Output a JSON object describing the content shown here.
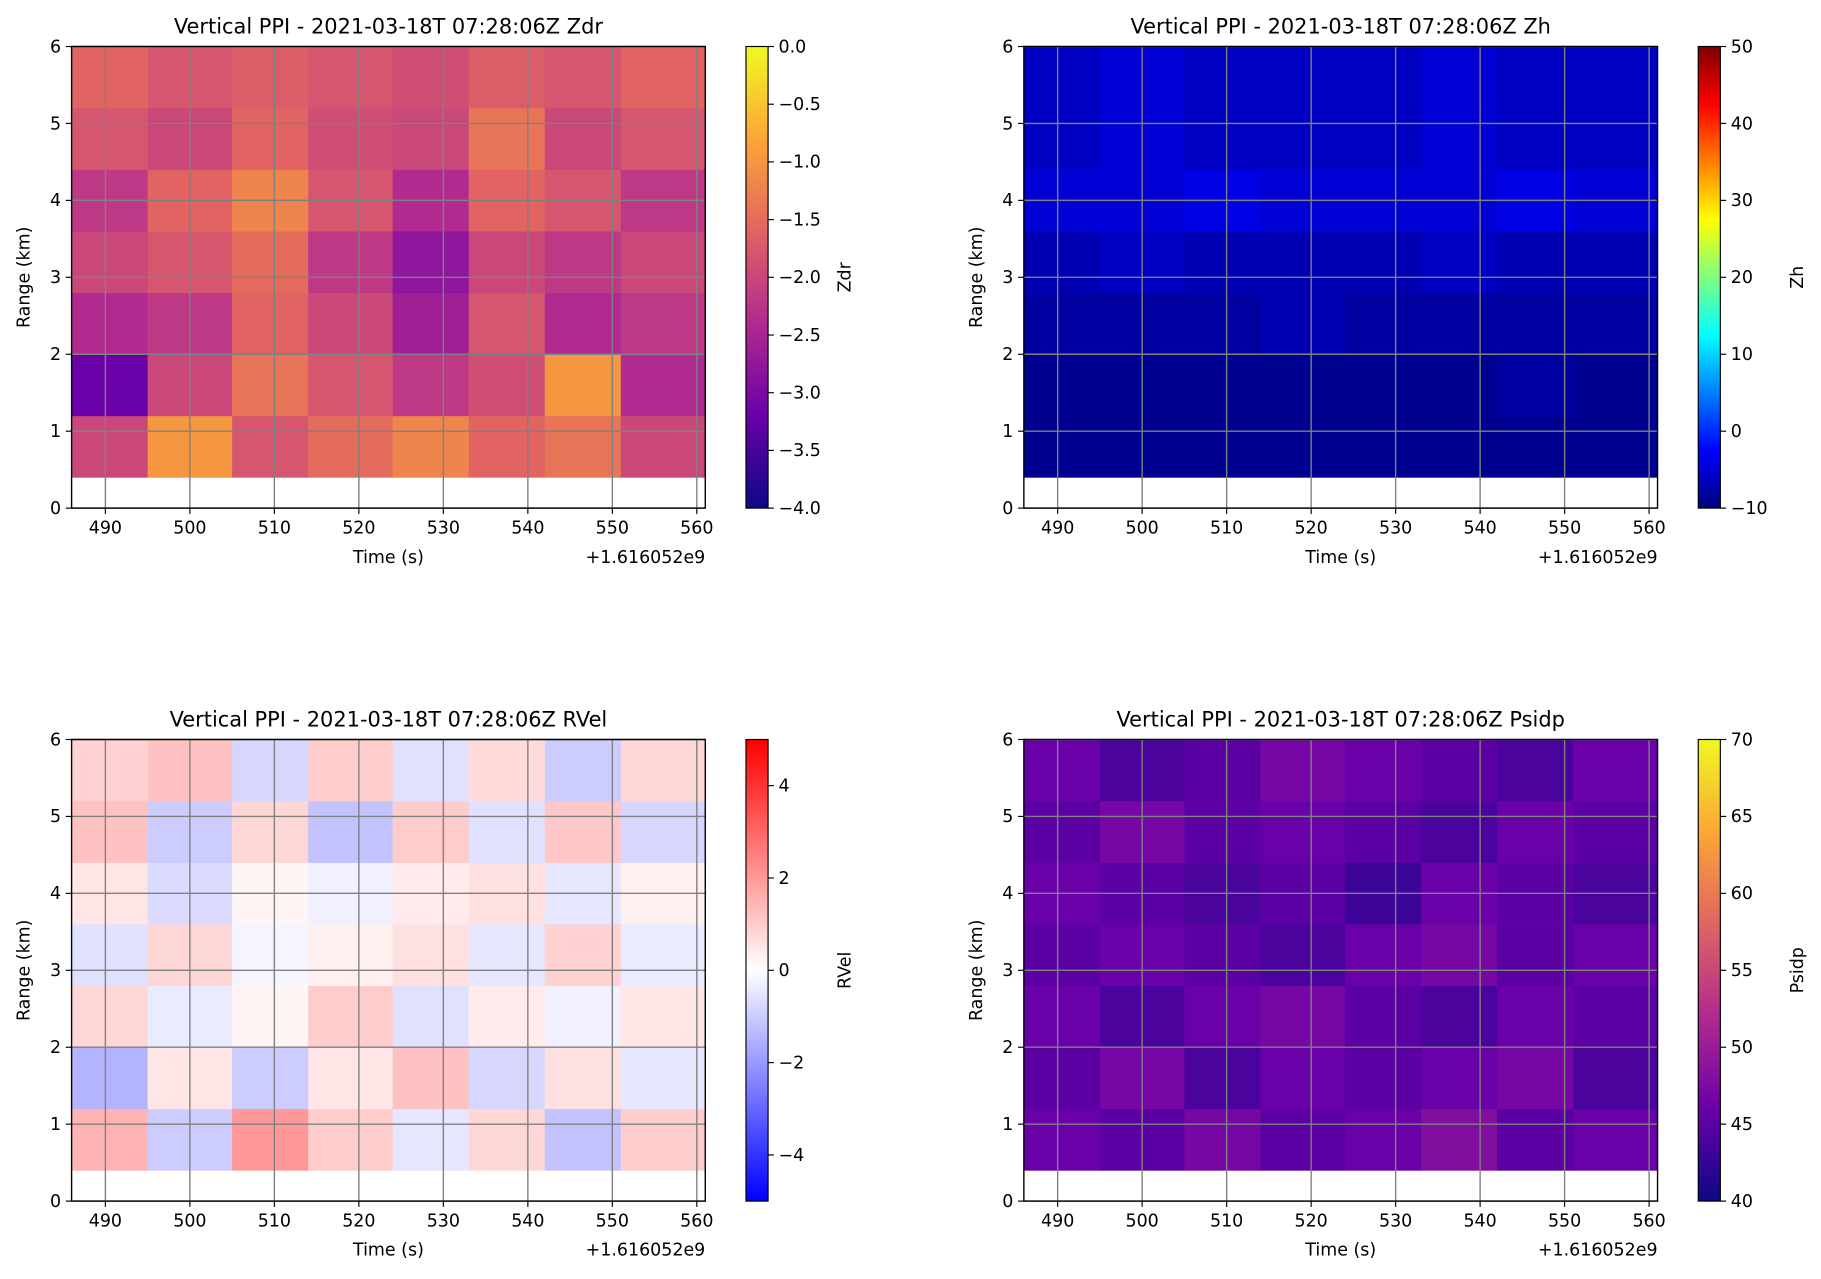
{
  "chart_data": [
    {
      "type": "heatmap",
      "title": "Vertical PPI - 2021-03-18T 07:28:06Z Zdr",
      "xlabel": "Time (s)",
      "ylabel": "Range (km)",
      "x_offset_label": "+1.616052e9",
      "colorbar_label": "Zdr",
      "colormap": [
        "#0d0887",
        "#6a00a8",
        "#b12a90",
        "#e16462",
        "#fca636",
        "#f0f921"
      ],
      "xbins": [
        486,
        495,
        505,
        514,
        524,
        533,
        542,
        551,
        561
      ],
      "ybins": [
        0.4,
        1.2,
        2.0,
        2.8,
        3.6,
        4.4,
        5.2,
        6.0
      ],
      "values": [
        [
          -2.0,
          -1.0,
          -1.8,
          -1.5,
          -1.2,
          -1.6,
          -1.4,
          -2.0
        ],
        [
          -3.2,
          -2.0,
          -1.4,
          -1.8,
          -2.2,
          -1.9,
          -1.0,
          -2.4
        ],
        [
          -2.4,
          -2.2,
          -1.6,
          -2.0,
          -2.6,
          -1.8,
          -2.4,
          -2.2
        ],
        [
          -2.0,
          -1.8,
          -1.5,
          -2.2,
          -2.8,
          -2.0,
          -2.2,
          -2.0
        ],
        [
          -2.2,
          -1.6,
          -1.2,
          -1.8,
          -2.4,
          -1.6,
          -1.8,
          -2.2
        ],
        [
          -1.8,
          -2.0,
          -1.6,
          -1.9,
          -2.0,
          -1.4,
          -2.0,
          -1.8
        ],
        [
          -1.6,
          -1.8,
          -1.7,
          -1.8,
          -1.9,
          -1.7,
          -1.8,
          -1.6
        ]
      ],
      "xlim": [
        486,
        561
      ],
      "ylim": [
        0,
        6
      ],
      "xticks": [
        490,
        500,
        510,
        520,
        530,
        540,
        550,
        560
      ],
      "yticks": [
        0,
        1,
        2,
        3,
        4,
        5,
        6
      ],
      "grid": true,
      "clim": [
        -4,
        0
      ],
      "cticks": [
        {
          "value": 0,
          "label": "0.0"
        },
        {
          "value": -0.5,
          "label": "−0.5"
        },
        {
          "value": -1,
          "label": "−1.0"
        },
        {
          "value": -1.5,
          "label": "−1.5"
        },
        {
          "value": -2,
          "label": "−2.0"
        },
        {
          "value": -2.5,
          "label": "−2.5"
        },
        {
          "value": -3,
          "label": "−3.0"
        },
        {
          "value": -3.5,
          "label": "−3.5"
        },
        {
          "value": -4,
          "label": "−4.0"
        }
      ]
    },
    {
      "type": "heatmap",
      "title": "Vertical PPI - 2021-03-18T 07:28:06Z Zh",
      "xlabel": "Time (s)",
      "ylabel": "Range (km)",
      "x_offset_label": "+1.616052e9",
      "colorbar_label": "Zh",
      "colormap": [
        "#00007f",
        "#0000ff",
        "#007fff",
        "#00ffff",
        "#7fff7f",
        "#ffff00",
        "#ff7f00",
        "#ff0000",
        "#7f0000"
      ],
      "xbins": [
        486,
        495,
        505,
        514,
        524,
        533,
        542,
        551,
        561
      ],
      "ybins": [
        0.4,
        1.2,
        2.0,
        2.8,
        3.6,
        4.4,
        5.2,
        6.0
      ],
      "values": [
        [
          -9,
          -9,
          -9,
          -9,
          -9,
          -9,
          -9,
          -9
        ],
        [
          -9,
          -9,
          -9,
          -9,
          -9,
          -9,
          -8,
          -9
        ],
        [
          -8,
          -8,
          -8,
          -7,
          -8,
          -8,
          -8,
          -8
        ],
        [
          -7,
          -6,
          -7,
          -7,
          -7,
          -6,
          -7,
          -7
        ],
        [
          -5,
          -5,
          -4,
          -5,
          -5,
          -5,
          -4,
          -5
        ],
        [
          -6,
          -5,
          -6,
          -6,
          -6,
          -5,
          -6,
          -6
        ],
        [
          -6,
          -5,
          -6,
          -6,
          -6,
          -5,
          -6,
          -6
        ]
      ],
      "xlim": [
        486,
        561
      ],
      "ylim": [
        0,
        6
      ],
      "xticks": [
        490,
        500,
        510,
        520,
        530,
        540,
        550,
        560
      ],
      "yticks": [
        0,
        1,
        2,
        3,
        4,
        5,
        6
      ],
      "grid": true,
      "clim": [
        -10,
        50
      ],
      "cticks": [
        {
          "value": -10,
          "label": "−10"
        },
        0,
        10,
        20,
        30,
        40,
        50
      ]
    },
    {
      "type": "heatmap",
      "title": "Vertical PPI - 2021-03-18T 07:28:06Z RVel",
      "xlabel": "Time (s)",
      "ylabel": "Range (km)",
      "x_offset_label": "+1.616052e9",
      "colorbar_label": "RVel",
      "colormap": [
        "#0000ff",
        "#ffffff",
        "#ff0000"
      ],
      "xbins": [
        486,
        495,
        505,
        514,
        524,
        533,
        542,
        551,
        561
      ],
      "ybins": [
        0.4,
        1.2,
        2.0,
        2.8,
        3.6,
        4.4,
        5.2,
        6.0
      ],
      "values": [
        [
          1.5,
          -1.0,
          2.0,
          1.0,
          -0.5,
          0.8,
          -1.2,
          1.0
        ],
        [
          -1.5,
          0.5,
          -1.0,
          0.5,
          1.2,
          -0.8,
          0.6,
          -0.5
        ],
        [
          0.8,
          -0.4,
          0.2,
          1.0,
          -0.6,
          0.4,
          -0.3,
          0.5
        ],
        [
          -0.6,
          0.8,
          -0.2,
          0.3,
          0.6,
          -0.5,
          0.9,
          -0.4
        ],
        [
          0.5,
          -0.7,
          0.2,
          -0.3,
          0.4,
          0.6,
          -0.5,
          0.3
        ],
        [
          1.2,
          -1.0,
          0.8,
          -1.2,
          1.0,
          -0.6,
          1.1,
          -0.8
        ],
        [
          0.9,
          1.2,
          -0.8,
          1.0,
          -0.6,
          0.7,
          -1.0,
          0.8
        ]
      ],
      "xlim": [
        486,
        561
      ],
      "ylim": [
        0,
        6
      ],
      "xticks": [
        490,
        500,
        510,
        520,
        530,
        540,
        550,
        560
      ],
      "yticks": [
        0,
        1,
        2,
        3,
        4,
        5,
        6
      ],
      "grid": true,
      "clim": [
        -5,
        5
      ],
      "cticks": [
        {
          "value": -4,
          "label": "−4"
        },
        {
          "value": -2,
          "label": "−2"
        },
        0,
        2,
        4
      ]
    },
    {
      "type": "heatmap",
      "title": "Vertical PPI - 2021-03-18T 07:28:06Z Psidp",
      "xlabel": "Time (s)",
      "ylabel": "Range (km)",
      "x_offset_label": "+1.616052e9",
      "colorbar_label": "Psidp",
      "colormap": [
        "#0d0887",
        "#6a00a8",
        "#b12a90",
        "#e16462",
        "#fca636",
        "#f0f921"
      ],
      "xbins": [
        486,
        495,
        505,
        514,
        524,
        533,
        542,
        551,
        561
      ],
      "ybins": [
        0.4,
        1.2,
        2.0,
        2.8,
        3.6,
        4.4,
        5.2,
        6.0
      ],
      "values": [
        [
          46,
          45,
          47,
          45,
          46,
          48,
          45,
          46
        ],
        [
          45,
          47,
          44,
          46,
          45,
          46,
          47,
          44
        ],
        [
          46,
          44,
          46,
          47,
          45,
          44,
          46,
          45
        ],
        [
          45,
          46,
          45,
          44,
          46,
          47,
          45,
          46
        ],
        [
          46,
          45,
          44,
          45,
          43,
          46,
          45,
          44
        ],
        [
          45,
          47,
          45,
          46,
          45,
          44,
          46,
          45
        ],
        [
          46,
          44,
          45,
          47,
          46,
          45,
          44,
          46
        ]
      ],
      "xlim": [
        486,
        561
      ],
      "ylim": [
        0,
        6
      ],
      "xticks": [
        490,
        500,
        510,
        520,
        530,
        540,
        550,
        560
      ],
      "yticks": [
        0,
        1,
        2,
        3,
        4,
        5,
        6
      ],
      "grid": true,
      "clim": [
        40,
        70
      ],
      "cticks": [
        40,
        45,
        50,
        55,
        60,
        65,
        70
      ]
    }
  ]
}
